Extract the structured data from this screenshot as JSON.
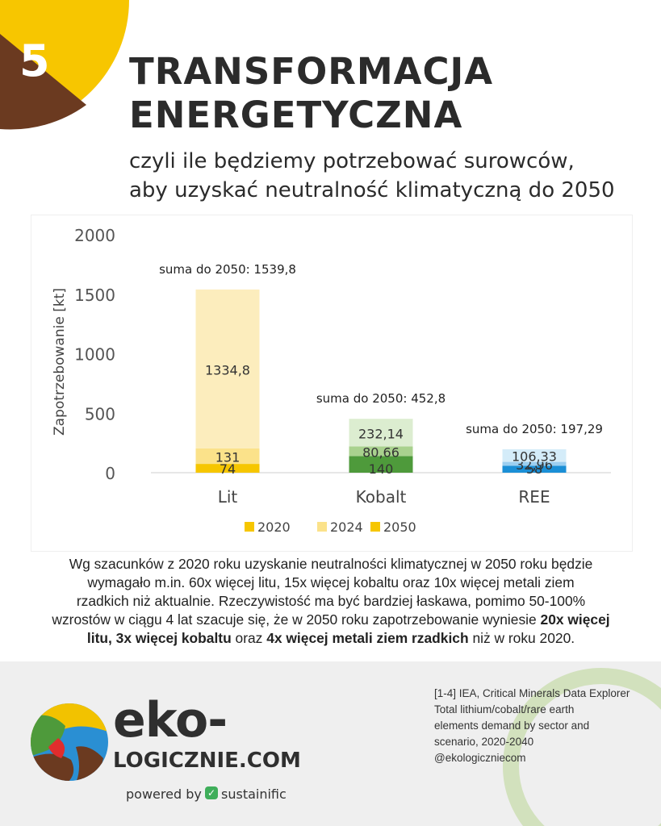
{
  "header": {
    "number": "5",
    "title_line1": "TRANSFORMACJA",
    "title_line2": "ENERGETYCZNA",
    "subtitle_line1": "czyli ile będziemy potrzebować surowców,",
    "subtitle_line2": "aby uzyskać neutralność klimatyczną do 2050"
  },
  "colors": {
    "corner_yellow": "#f7c600",
    "corner_brown": "#6b3a20",
    "lit": [
      "#f6c600",
      "#fbe28a",
      "#fcedbd"
    ],
    "kobalt": [
      "#4e9a3b",
      "#a9d18e",
      "#dcedd0"
    ],
    "ree": [
      "#1b8fd6",
      "#9ccff0",
      "#d4ecf9"
    ],
    "legend": [
      "#f6c600",
      "#fbe28a",
      "#f6c600"
    ]
  },
  "chart_data": {
    "type": "bar",
    "stacked": true,
    "categories": [
      "Lit",
      "Kobalt",
      "REE"
    ],
    "series": [
      {
        "name": "2020",
        "values": [
          74,
          140,
          58
        ]
      },
      {
        "name": "2024",
        "values": [
          131,
          80.66,
          32.96
        ]
      },
      {
        "name": "2050",
        "values": [
          1334.8,
          232.14,
          106.33
        ]
      }
    ],
    "data_labels": [
      [
        "74",
        "131",
        "1334,8"
      ],
      [
        "140",
        "80,66",
        "232,14"
      ],
      [
        "58",
        "32,96",
        "106,33"
      ]
    ],
    "totals": [
      "suma do 2050: 1539,8",
      "suma do 2050: 452,8",
      "suma do 2050: 197,29"
    ],
    "ylabel": "Zapotrzebowanie [kt]",
    "ylim": [
      0,
      2000
    ],
    "yticks": [
      "0",
      "500",
      "1000",
      "1500",
      "2000"
    ],
    "grid": false,
    "legend_position": "bottom"
  },
  "description": {
    "line1": "Wg szacunków z 2020 roku uzyskanie neutralności klimatycznej w 2050 roku będzie",
    "line2": "wymagało m.in. 60x więcej litu, 15x więcej kobaltu oraz 10x więcej metali ziem",
    "line3": "rzadkich niż aktualnie. Rzeczywistość ma być bardziej łaskawa, pomimo 50-100%",
    "line4": "wzrostów w ciągu 4 lat szacuje się, że w 2050 roku zapotrzebowanie wyniesie",
    "bold1": "20x więcej",
    "bold2": "litu, 3x więcej kobaltu",
    "mid": "oraz",
    "bold3": "4x więcej metali ziem rzadkich",
    "end": "niż w roku 2020."
  },
  "footer": {
    "source_lines": [
      "[1-4] IEA, Critical Minerals Data Explorer",
      "Total lithium/cobalt/rare earth",
      "elements demand by sector and",
      "scenario, 2020-2040",
      "@ekologiczniecom"
    ],
    "brand_main": "eko-",
    "brand_sub": "LOGICZNIE.COM",
    "powered_by": "powered by",
    "sponsor": "sustainific"
  }
}
